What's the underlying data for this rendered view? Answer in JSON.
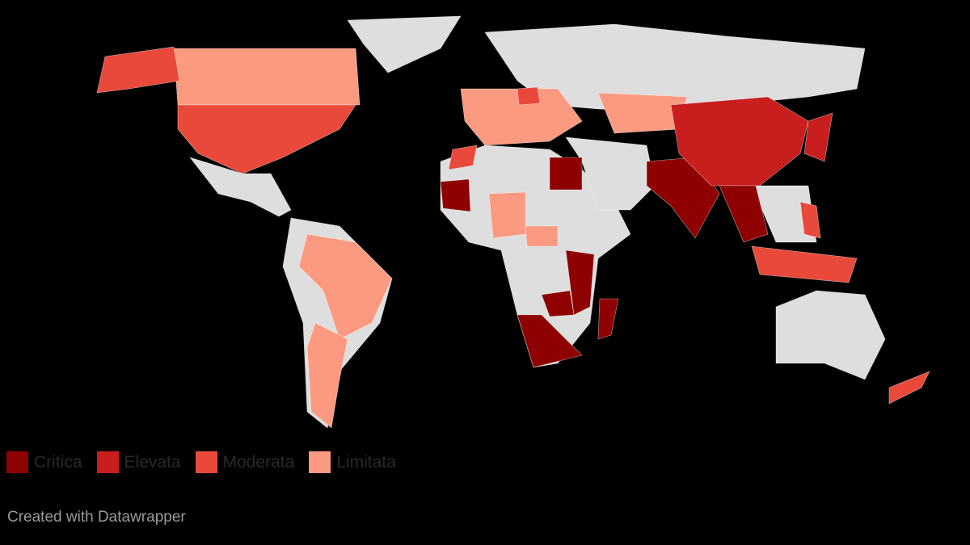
{
  "legend": [
    {
      "label": "Critica",
      "color": "#8f0000"
    },
    {
      "label": "Elevata",
      "color": "#c81e1e"
    },
    {
      "label": "Moderata",
      "color": "#e8493a"
    },
    {
      "label": "Limitata",
      "color": "#fb9a80"
    }
  ],
  "no_data_color": "#dedede",
  "background": "#000000",
  "footer": "Created with Datawrapper"
}
